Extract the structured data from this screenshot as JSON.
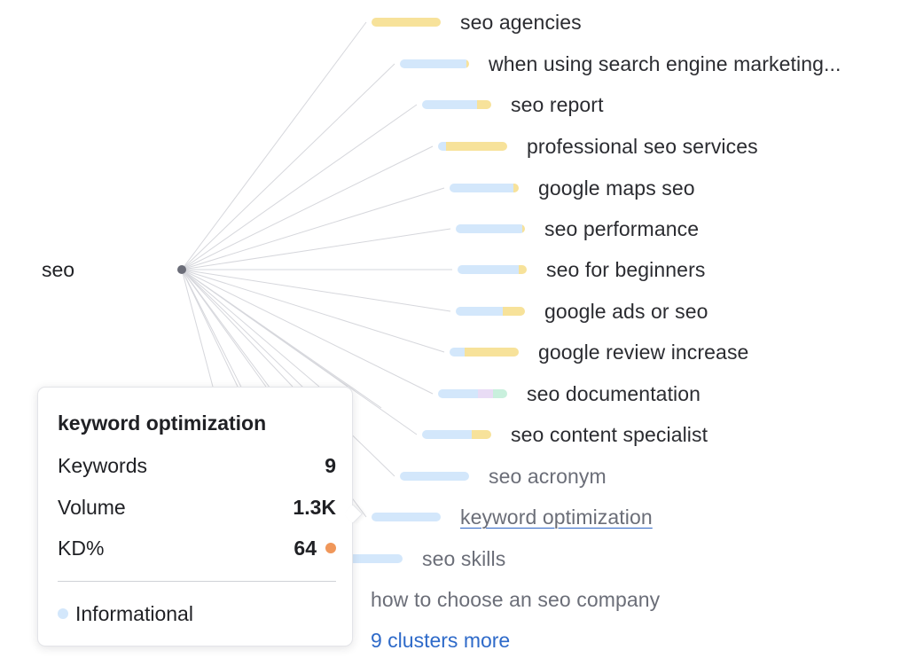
{
  "root": {
    "label": "seo"
  },
  "colors": {
    "informational": "#d3e7fb",
    "navigational": "#e9dcf5",
    "commercial": "#f7e29a",
    "transactional": "#c9f0dd",
    "link": "#2e6ac9",
    "kd_orange": "#f0975a",
    "line": "#d6d7dc"
  },
  "clusters": [
    {
      "label": "seo agencies",
      "segments": [
        {
          "intent": "commercial",
          "pct": 100
        }
      ]
    },
    {
      "label": "when using search engine marketing...",
      "segments": [
        {
          "intent": "informational",
          "pct": 96
        },
        {
          "intent": "commercial",
          "pct": 4
        }
      ]
    },
    {
      "label": "seo report",
      "segments": [
        {
          "intent": "informational",
          "pct": 80
        },
        {
          "intent": "commercial",
          "pct": 20
        }
      ]
    },
    {
      "label": "professional seo services",
      "segments": [
        {
          "intent": "informational",
          "pct": 12
        },
        {
          "intent": "commercial",
          "pct": 88
        }
      ]
    },
    {
      "label": "google maps seo",
      "segments": [
        {
          "intent": "informational",
          "pct": 92
        },
        {
          "intent": "commercial",
          "pct": 8
        }
      ]
    },
    {
      "label": "seo performance",
      "segments": [
        {
          "intent": "informational",
          "pct": 96
        },
        {
          "intent": "commercial",
          "pct": 4
        }
      ]
    },
    {
      "label": "seo for beginners",
      "segments": [
        {
          "intent": "informational",
          "pct": 88
        },
        {
          "intent": "commercial",
          "pct": 12
        }
      ]
    },
    {
      "label": "google ads or seo",
      "segments": [
        {
          "intent": "informational",
          "pct": 68
        },
        {
          "intent": "commercial",
          "pct": 32
        }
      ]
    },
    {
      "label": "google review increase",
      "segments": [
        {
          "intent": "informational",
          "pct": 22
        },
        {
          "intent": "commercial",
          "pct": 78
        }
      ]
    },
    {
      "label": "seo documentation",
      "segments": [
        {
          "intent": "informational",
          "pct": 58
        },
        {
          "intent": "navigational",
          "pct": 22
        },
        {
          "intent": "transactional",
          "pct": 20
        }
      ]
    },
    {
      "label": "seo content specialist",
      "segments": [
        {
          "intent": "informational",
          "pct": 72
        },
        {
          "intent": "commercial",
          "pct": 28
        }
      ]
    },
    {
      "label": "seo acronym",
      "segments": [
        {
          "intent": "informational",
          "pct": 100
        }
      ]
    },
    {
      "label": "keyword optimization",
      "segments": [
        {
          "intent": "informational",
          "pct": 100
        }
      ]
    },
    {
      "label": "seo skills",
      "segments": [
        {
          "intent": "informational",
          "pct": 100
        }
      ]
    },
    {
      "label": "how to choose an seo company",
      "segments": []
    }
  ],
  "more_link": "9 clusters more",
  "tooltip": {
    "title": "keyword optimization",
    "rows": [
      {
        "key": "Keywords",
        "value": "9"
      },
      {
        "key": "Volume",
        "value": "1.3K"
      },
      {
        "key": "KD%",
        "value": "64"
      }
    ],
    "intent": "Informational"
  }
}
